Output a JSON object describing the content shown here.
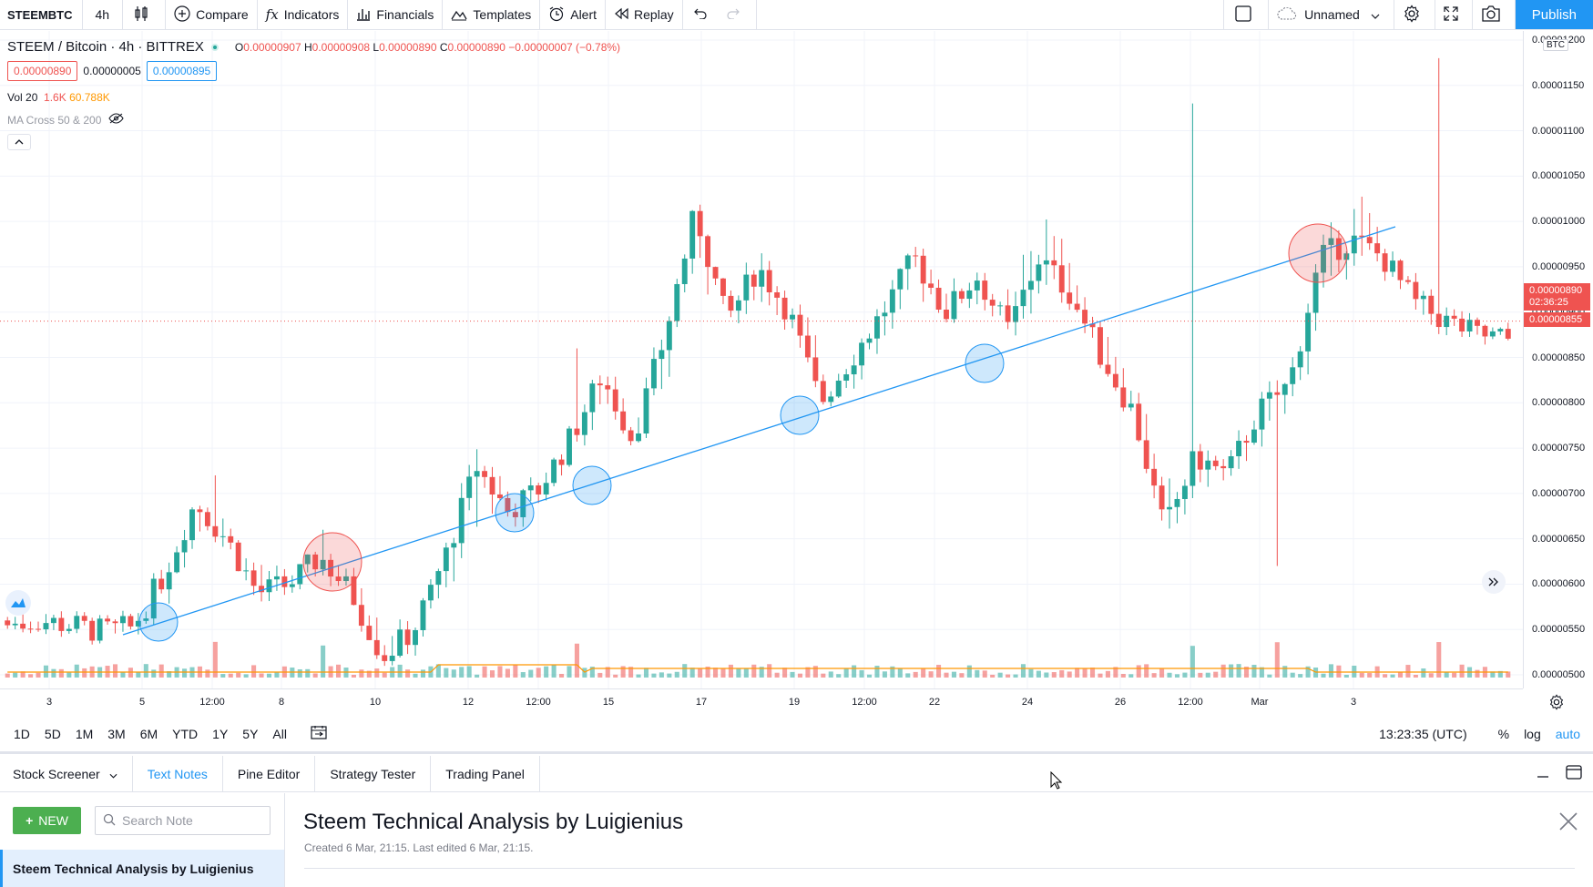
{
  "toolbar": {
    "symbol": "STEEMBTC",
    "interval": "4h",
    "compare": "Compare",
    "indicators": "Indicators",
    "financials": "Financials",
    "templates": "Templates",
    "alert": "Alert",
    "replay": "Replay",
    "layout_name": "Unnamed",
    "publish": "Publish"
  },
  "legend": {
    "title": "STEEM / Bitcoin · 4h · BITTREX",
    "ohlc": {
      "o_label": "O",
      "o": "0.00000907",
      "h_label": "H",
      "h": "0.00000908",
      "l_label": "L",
      "l": "0.00000890",
      "c_label": "C",
      "c": "0.00000890",
      "change": "−0.00000007 (−0.78%)"
    },
    "sell": "0.00000890",
    "spread": "0.00000005",
    "buy": "0.00000895",
    "vol_label": "Vol 20",
    "vol_value": "1.6K",
    "vol_ma": "60.788K",
    "ma_label": "MA Cross 50 & 200"
  },
  "price_axis": {
    "currency": "BTC",
    "ticks": [
      "0.00001200",
      "0.00001150",
      "0.00001100",
      "0.00001050",
      "0.00001000",
      "0.00000950",
      "0.00000900",
      "0.00000850",
      "0.00000800",
      "0.00000750",
      "0.00000700",
      "0.00000650",
      "0.00000600",
      "0.00000550",
      "0.00000500"
    ],
    "last_price": "0.00000890",
    "countdown": "02:36:25",
    "bid_label": "0.00000855"
  },
  "time_axis": {
    "ticks": [
      "3",
      "5",
      "12:00",
      "8",
      "10",
      "12",
      "12:00",
      "15",
      "17",
      "19",
      "12:00",
      "22",
      "24",
      "26",
      "12:00",
      "Mar",
      "3"
    ]
  },
  "chart_data": {
    "type": "candlestick",
    "y_range": [
      4.85e-06,
      1.21e-05
    ],
    "series": [
      {
        "name": "STEEM / Bitcoin",
        "ohlc_sample": [
          [
            5.6e-06,
            5.75e-06,
            5.5e-06,
            5.55e-06
          ],
          [
            5.55e-06,
            5.8e-06,
            5.45e-06,
            5.6e-06
          ],
          [
            5.6e-06,
            5.9e-06,
            5.45e-06,
            5.55e-06
          ],
          [
            5.55e-06,
            5.65e-06,
            5.4e-06,
            5.48e-06
          ],
          [
            5.48e-06,
            5.6e-06,
            5.4e-06,
            5.52e-06
          ],
          [
            5.52e-06,
            6.2e-06,
            5.48e-06,
            6.1e-06
          ],
          [
            6.1e-06,
            7e-06,
            6e-06,
            6.9e-06
          ],
          [
            6.9e-06,
            7.2e-06,
            6.4e-06,
            6.5e-06
          ],
          [
            6.5e-06,
            6.6e-06,
            5.75e-06,
            5.9e-06
          ],
          [
            5.9e-06,
            6.1e-06,
            5.8e-06,
            6e-06
          ],
          [
            6e-06,
            6.4e-06,
            5.95e-06,
            6.3e-06
          ],
          [
            6.3e-06,
            6.5e-06,
            5.8e-06,
            5.9e-06
          ],
          [
            5.9e-06,
            6e-06,
            5.1e-06,
            5.2e-06
          ],
          [
            5.2e-06,
            5.6e-06,
            5.1e-06,
            5.5e-06
          ],
          [
            5.5e-06,
            6.4e-06,
            5.45e-06,
            6.3e-06
          ],
          [
            6.3e-06,
            8.6e-06,
            5.4e-06,
            7.3e-06
          ],
          [
            7.3e-06,
            7.4e-06,
            6.6e-06,
            6.8e-06
          ],
          [
            6.8e-06,
            7.2e-06,
            6.7e-06,
            7.05e-06
          ],
          [
            7.05e-06,
            7.7e-06,
            7e-06,
            7.6e-06
          ],
          [
            7.6e-06,
            8.5e-06,
            7.4e-06,
            8.3e-06
          ],
          [
            8.3e-06,
            8.4e-06,
            7.5e-06,
            7.6e-06
          ],
          [
            7.6e-06,
            8.8e-06,
            7.5e-06,
            8.7e-06
          ],
          [
            8.7e-06,
            1.02e-05,
            8.6e-06,
            1.01e-05
          ],
          [
            1.01e-05,
            1.015e-05,
            8.6e-06,
            8.9e-06
          ],
          [
            8.9e-06,
            9.9e-06,
            8.8e-06,
            9.5e-06
          ],
          [
            9.5e-06,
            9.6e-06,
            8.8e-06,
            9e-06
          ],
          [
            9e-06,
            9.1e-06,
            7.9e-06,
            8e-06
          ],
          [
            8e-06,
            8.6e-06,
            7.9e-06,
            8.5e-06
          ],
          [
            8.5e-06,
            9.3e-06,
            8.4e-06,
            9e-06
          ],
          [
            9e-06,
            9.9e-06,
            8.8e-06,
            9.6e-06
          ],
          [
            9.6e-06,
            9.8e-06,
            8.9e-06,
            9e-06
          ],
          [
            9e-06,
            9.6e-06,
            8.8e-06,
            9.4e-06
          ],
          [
            9.4e-06,
            9.5e-06,
            8.6e-06,
            8.8e-06
          ],
          [
            8.8e-06,
            1.13e-05,
            8.5e-06,
            9.6e-06
          ],
          [
            9.6e-06,
            1.01e-05,
            9.1e-06,
            9.2e-06
          ],
          [
            9.2e-06,
            9.3e-06,
            8.3e-06,
            8.5e-06
          ],
          [
            8.5e-06,
            8.6e-06,
            7.8e-06,
            7.9e-06
          ],
          [
            7.9e-06,
            8e-06,
            6.2e-06,
            6.6e-06
          ],
          [
            6.6e-06,
            7.6e-06,
            6.5e-06,
            7.4e-06
          ],
          [
            7.4e-06,
            7.8e-06,
            7e-06,
            7.2e-06
          ],
          [
            7.2e-06,
            8e-06,
            7.1e-06,
            7.9e-06
          ],
          [
            7.9e-06,
            8.8e-06,
            7.4e-06,
            8.2e-06
          ],
          [
            8.2e-06,
            9.8e-06,
            8e-06,
            9.6e-06
          ],
          [
            9.6e-06,
            1.18e-05,
            9.2e-06,
            9.8e-06
          ],
          [
            9.8e-06,
            1e-05,
            9.3e-06,
            9.6e-06
          ],
          [
            9.6e-06,
            9.7e-06,
            8.9e-06,
            9.1e-06
          ],
          [
            9.1e-06,
            9.3e-06,
            8.7e-06,
            8.9e-06
          ],
          [
            8.9e-06,
            9e-06,
            8.6e-06,
            8.75e-06
          ],
          [
            8.75e-06,
            8.95e-06,
            8.55e-06,
            8.7e-06
          ]
        ]
      }
    ],
    "trendline": {
      "from": [
        "Mar 4",
        5.48e-06
      ],
      "to": [
        "Feb 27 12:00",
        1e-05
      ]
    },
    "highlight_circles": {
      "support_touches": 6,
      "resistance_touches": 2
    },
    "volume_ma_color": "#ff9800",
    "up_color": "#26a69a",
    "down_color": "#ef5350",
    "line_color": "#2196f3"
  },
  "rangebar": {
    "ranges": [
      "1D",
      "5D",
      "1M",
      "3M",
      "6M",
      "YTD",
      "1Y",
      "5Y",
      "All"
    ],
    "clock": "13:23:35 (UTC)",
    "pct": "%",
    "log": "log",
    "auto": "auto"
  },
  "bottom_tabs": [
    "Stock Screener",
    "Text Notes",
    "Pine Editor",
    "Strategy Tester",
    "Trading Panel"
  ],
  "notes": {
    "new_label": "NEW",
    "search_placeholder": "Search Note",
    "items": [
      "Steem Technical Analysis by Luigienius"
    ],
    "title": "Steem Technical Analysis by Luigienius",
    "meta": "Created 6 Mar, 21:15. Last edited 6 Mar, 21:15."
  }
}
